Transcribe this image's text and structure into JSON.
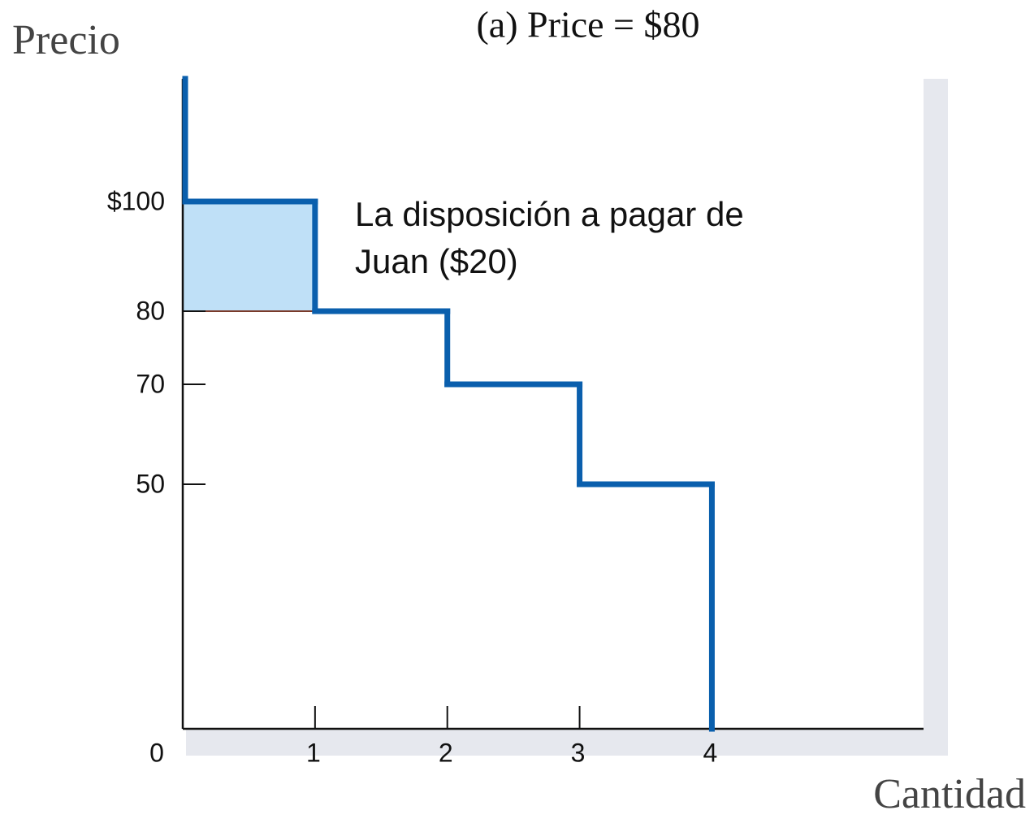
{
  "chart_data": {
    "type": "step",
    "title": "(a) Price = $80",
    "y_label": "Precio",
    "x_label": "Cantidad",
    "annotation": [
      "La disposición a pagar de",
      "Juan ($20)"
    ],
    "x": [
      1,
      2,
      3,
      4
    ],
    "values": [
      100,
      80,
      70,
      50
    ],
    "price": 80,
    "color": "#0a5fad",
    "surplus_color": "#bfe0f7",
    "price_color": "#7a3a2a",
    "xlim": [
      0,
      5.6
    ],
    "xticks": [
      0,
      1,
      2,
      3,
      4
    ],
    "ylim": [
      0,
      122
    ],
    "yticks": [
      {
        "value": 100,
        "label": "$100"
      },
      80,
      70,
      50
    ]
  }
}
